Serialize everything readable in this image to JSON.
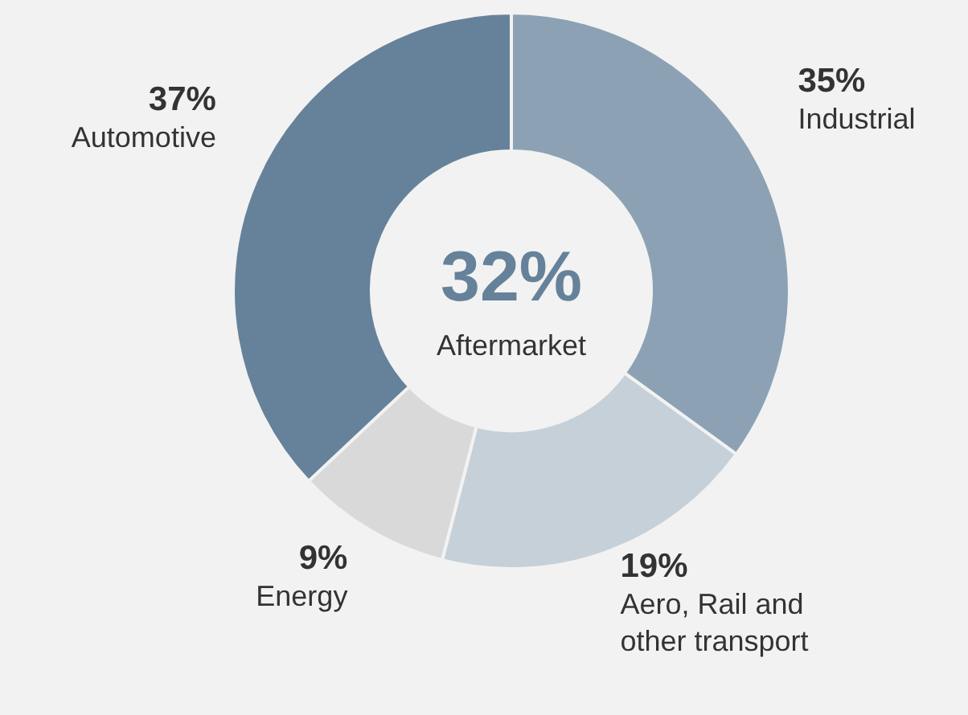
{
  "chart_data": {
    "type": "donut",
    "categories": [
      "Industrial",
      "Aero, Rail and other transport",
      "Energy",
      "Automotive"
    ],
    "values": [
      35,
      19,
      9,
      37
    ],
    "colors": [
      "#8ca2b4",
      "#c6d0d8",
      "#d9d9d9",
      "#66829a"
    ],
    "value_labels": [
      "35%",
      "19%",
      "9%",
      "37%"
    ],
    "annotations": [
      "32%",
      "Aftermarket"
    ]
  }
}
